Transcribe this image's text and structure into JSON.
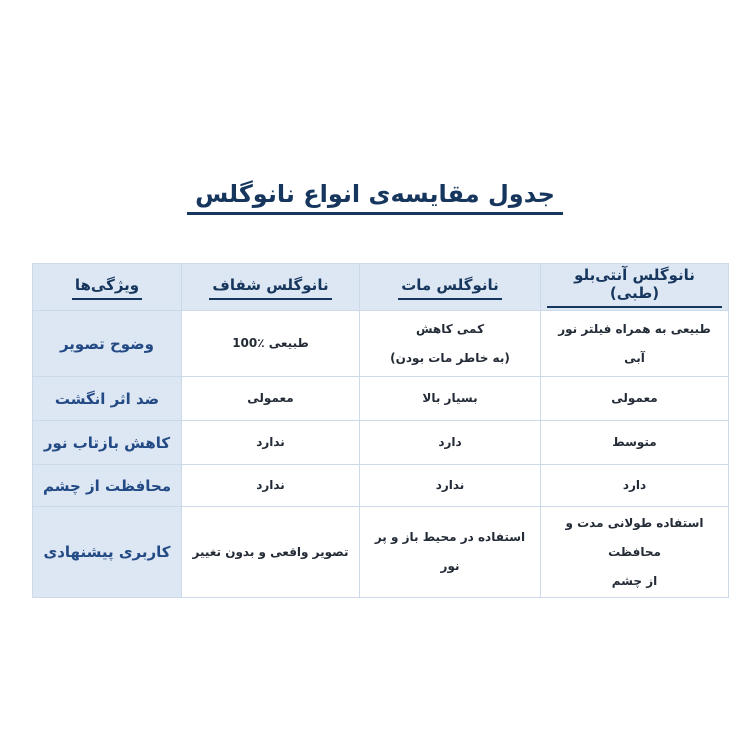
{
  "page": {
    "background": "#ffffff",
    "language": "fa",
    "direction": "rtl"
  },
  "title": {
    "text": "جدول مقایسه‌ی انواع نانوگلس"
  },
  "colors": {
    "title_text": "#17365d",
    "header_text": "#17365d",
    "feature_text": "#234a85",
    "body_text": "#232b36",
    "shaded_cell_bg": "#dce7f3",
    "cell_border": "#ccd9e8"
  },
  "table": {
    "header": {
      "features": "ویژگی‌ها",
      "columns": [
        "نانوگلس شفاف",
        "نانوگلس مات",
        "نانوگلس آنتی‌بلو (طبی)"
      ]
    },
    "rows": [
      {
        "feature": "وضوح تصویر",
        "values": [
          "طبیعی ٪100",
          "کمی کاهش\n(به خاطر مات بودن)",
          "طبیعی به همراه فیلتر نور آبی"
        ]
      },
      {
        "feature": "ضد اثر انگشت",
        "values": [
          "معمولی",
          "بسیار بالا",
          "معمولی"
        ]
      },
      {
        "feature": "کاهش بازتاب نور",
        "values": [
          "ندارد",
          "دارد",
          "متوسط"
        ]
      },
      {
        "feature": "محافظت از چشم",
        "values": [
          "ندارد",
          "ندارد",
          "دارد"
        ]
      },
      {
        "feature": "کاربری پیشنهادی",
        "values": [
          "تصویر واقعی و بدون تغییر",
          "استفاده در محیط باز و پر نور",
          "استفاده طولانی مدت و محافظت\nاز چشم"
        ]
      }
    ]
  }
}
